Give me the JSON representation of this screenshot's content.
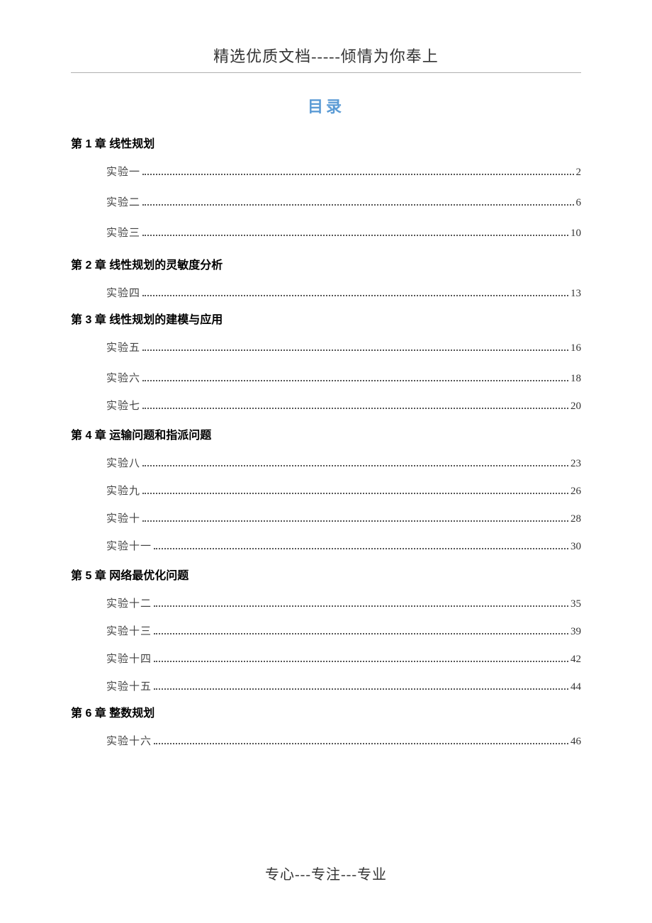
{
  "header": "精选优质文档-----倾情为你奉上",
  "toc_title": "目录",
  "footer": "专心---专注---专业",
  "colors": {
    "title_color": "#5b9bd5",
    "text_color": "#333333",
    "entry_color": "#444444",
    "background": "#ffffff",
    "rule_color": "#b0b0b0"
  },
  "typography": {
    "header_fontsize": 22,
    "title_fontsize": 22,
    "chapter_fontsize": 16,
    "entry_fontsize": 15,
    "footer_fontsize": 20,
    "chapter_font": "SimHei",
    "body_font": "SimSun"
  },
  "chapters": [
    {
      "title": "第 1 章  线性规划",
      "entries": [
        {
          "label": "实验一",
          "page": "2",
          "spacing": "loose"
        },
        {
          "label": "实验二",
          "page": "6",
          "spacing": "loose"
        },
        {
          "label": "实验三",
          "page": "10",
          "spacing": "loose"
        }
      ]
    },
    {
      "title": "第 2 章  线性规划的灵敏度分析",
      "entries": [
        {
          "label": "实验四",
          "page": "13",
          "spacing": "tight"
        }
      ]
    },
    {
      "title": "第 3 章  线性规划的建模与应用",
      "entries": [
        {
          "label": "实验五",
          "page": "16",
          "spacing": "loose"
        },
        {
          "label": "实验六",
          "page": "18",
          "spacing": "medium"
        },
        {
          "label": "实验七",
          "page": "20",
          "spacing": "medium"
        }
      ]
    },
    {
      "title": "第 4 章  运输问题和指派问题",
      "entries": [
        {
          "label": "实验八",
          "page": "23",
          "spacing": "medium"
        },
        {
          "label": "实验九",
          "page": "26",
          "spacing": "medium"
        },
        {
          "label": "实验十",
          "page": "28",
          "spacing": "medium"
        },
        {
          "label": "实验十一",
          "page": "30",
          "spacing": "medium"
        }
      ]
    },
    {
      "title": "第 5 章  网络最优化问题",
      "entries": [
        {
          "label": "实验十二",
          "page": "35",
          "spacing": "medium"
        },
        {
          "label": "实验十三",
          "page": "39",
          "spacing": "medium"
        },
        {
          "label": "实验十四",
          "page": "42",
          "spacing": "medium"
        },
        {
          "label": "实验十五",
          "page": "44",
          "spacing": "tight"
        }
      ]
    },
    {
      "title": "第 6 章  整数规划",
      "entries": [
        {
          "label": "实验十六",
          "page": "46",
          "spacing": "medium"
        }
      ]
    }
  ]
}
